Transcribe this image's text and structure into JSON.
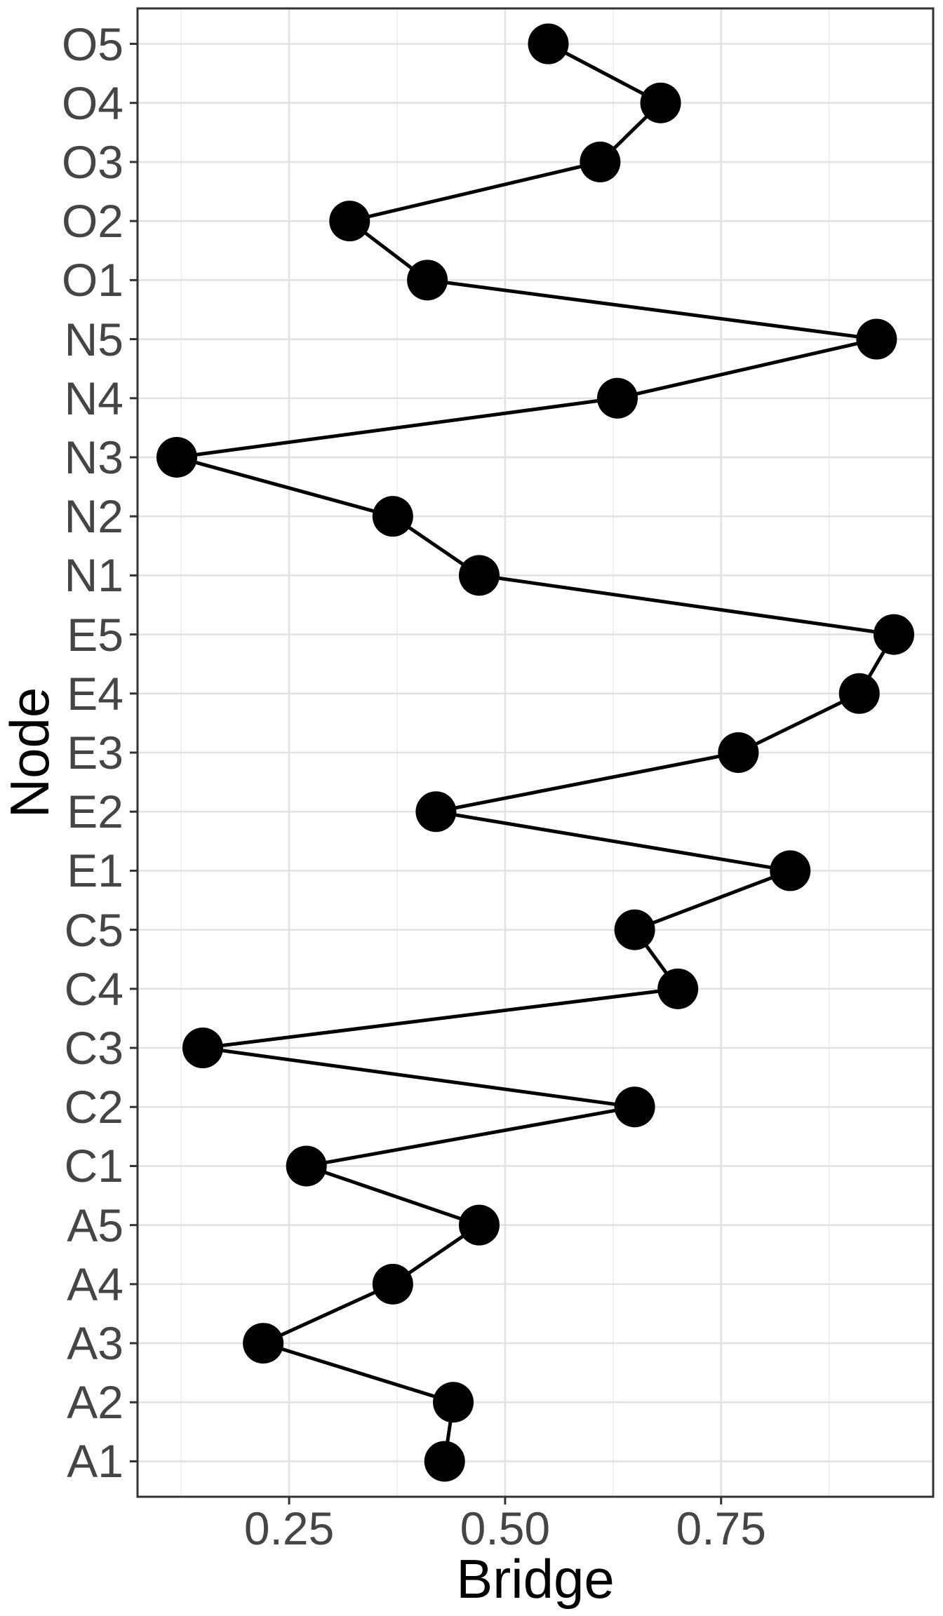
{
  "figure": {
    "background": "#ffffff",
    "panel_border_color": "#333333",
    "grid_major_color": "#e2e2e2",
    "grid_minor_color": "#efefef",
    "tick_color": "#333333",
    "axis_text_color": "#454545",
    "axis_title_color": "#000000",
    "point_color": "#000000",
    "path_color": "#000000"
  },
  "chart_data": {
    "type": "scatter",
    "subtype": "connected-dot-path",
    "orientation": "horizontal",
    "title": "",
    "xlabel": "Bridge",
    "ylabel": "Node",
    "x_tick_labels": [
      "0.25",
      "0.50",
      "0.75"
    ],
    "x_tick_values": [
      0.25,
      0.5,
      0.75
    ],
    "x_minor_gridlines": [
      0.125,
      0.375,
      0.625,
      0.875
    ],
    "xlim": [
      0.0745,
      0.9955
    ],
    "grid": "x-major+x-minor+y-major",
    "legend_position": "none",
    "nodes_top_to_bottom": [
      "O5",
      "O4",
      "O3",
      "O2",
      "O1",
      "N5",
      "N4",
      "N3",
      "N2",
      "N1",
      "E5",
      "E4",
      "E3",
      "E2",
      "E1",
      "C5",
      "C4",
      "C3",
      "C2",
      "C1",
      "A5",
      "A4",
      "A3",
      "A2",
      "A1"
    ],
    "bridge_values_top_to_bottom": [
      0.55,
      0.68,
      0.61,
      0.32,
      0.41,
      0.93,
      0.63,
      0.12,
      0.37,
      0.47,
      0.95,
      0.91,
      0.77,
      0.42,
      0.83,
      0.65,
      0.7,
      0.15,
      0.65,
      0.27,
      0.47,
      0.37,
      0.22,
      0.44,
      0.43
    ],
    "points_connected_in_axis_order": true
  }
}
